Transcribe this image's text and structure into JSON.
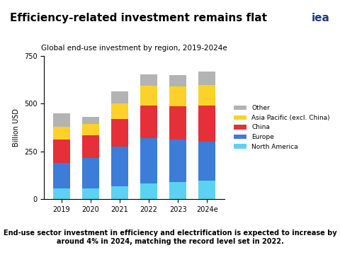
{
  "chart_data": {
    "type": "bar",
    "title": "Efficiency-related investment remains flat",
    "subtitle": "Global end-use investment by region, 2019-2024e",
    "y_label": "Billion USD",
    "annotations": [
      "End-use sector investment in efficiency and electrification is expected to increase by around 4% in 2024, matching the record level set in 2022.",
      "iea"
    ],
    "categories": [
      "2019",
      "2020",
      "2021",
      "2022",
      "2023",
      "2024e"
    ],
    "stacked": true,
    "series": [
      {
        "name": "North America",
        "color": "#5ad3f2",
        "values": [
          55,
          55,
          65,
          80,
          90,
          95
        ]
      },
      {
        "name": "Europe",
        "color": "#3b7dd8",
        "values": [
          135,
          160,
          210,
          240,
          220,
          205
        ]
      },
      {
        "name": "China",
        "color": "#e5303a",
        "values": [
          120,
          120,
          145,
          170,
          175,
          190
        ]
      },
      {
        "name": "Asia Pacific (excl. China)",
        "color": "#fcd12a",
        "values": [
          70,
          60,
          80,
          105,
          105,
          110
        ]
      },
      {
        "name": "Other",
        "color": "#b3b3b3",
        "values": [
          70,
          35,
          65,
          60,
          60,
          70
        ]
      }
    ],
    "ylim": [
      0,
      750
    ],
    "yticks": [
      0,
      250,
      500,
      750
    ],
    "grid": false,
    "legend": "right"
  }
}
